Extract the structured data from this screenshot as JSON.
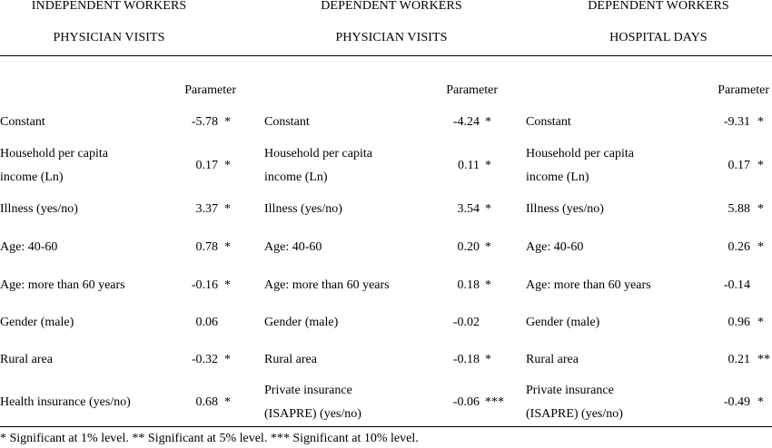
{
  "columns": [
    {
      "title1": "INDEPENDENT WORKERS",
      "title2": "PHYSICIAN VISITS",
      "param_header": "Parameter"
    },
    {
      "title1": "DEPENDENT WORKERS",
      "title2": "PHYSICIAN VISITS",
      "param_header": "Parameter"
    },
    {
      "title1": "DEPENDENT WORKERS",
      "title2": "HOSPITAL DAYS",
      "param_header": "Parameter"
    }
  ],
  "rows": [
    {
      "labels": [
        [
          "Constant"
        ],
        [
          "Constant"
        ],
        [
          "Constant"
        ]
      ],
      "values": [
        "-5.78",
        "-4.24",
        "-9.31"
      ],
      "sig": [
        "*",
        "*",
        "*"
      ]
    },
    {
      "labels": [
        [
          "Household per capita",
          "income (Ln)"
        ],
        [
          "Household per capita",
          "income (Ln)"
        ],
        [
          "Household per capita",
          "income (Ln)"
        ]
      ],
      "values": [
        "0.17",
        "0.11",
        "0.17"
      ],
      "sig": [
        "*",
        "*",
        "*"
      ]
    },
    {
      "labels": [
        [
          "Illness (yes/no)"
        ],
        [
          "Illness (yes/no)"
        ],
        [
          "Illness (yes/no)"
        ]
      ],
      "values": [
        "3.37",
        "3.54",
        "5.88"
      ],
      "sig": [
        "*",
        "*",
        "*"
      ]
    },
    {
      "labels": [
        [
          "Age: 40-60"
        ],
        [
          "Age: 40-60"
        ],
        [
          "Age: 40-60"
        ]
      ],
      "values": [
        "0.78",
        "0.20",
        "0.26"
      ],
      "sig": [
        "*",
        "*",
        "*"
      ]
    },
    {
      "labels": [
        [
          "Age: more than 60 years"
        ],
        [
          "Age: more than 60 years"
        ],
        [
          "Age: more than 60 years"
        ]
      ],
      "values": [
        "-0.16",
        "0.18",
        "-0.14"
      ],
      "sig": [
        "*",
        "*",
        ""
      ]
    },
    {
      "labels": [
        [
          "Gender (male)"
        ],
        [
          "Gender (male)"
        ],
        [
          "Gender (male)"
        ]
      ],
      "values": [
        "0.06",
        "-0.02",
        "0.96"
      ],
      "sig": [
        "",
        "",
        "*"
      ]
    },
    {
      "labels": [
        [
          "Rural area"
        ],
        [
          "Rural area"
        ],
        [
          "Rural area"
        ]
      ],
      "values": [
        "-0.32",
        "-0.18",
        "0.21"
      ],
      "sig": [
        "*",
        "*",
        "**"
      ]
    },
    {
      "labels": [
        [
          "Health insurance (yes/no)"
        ],
        [
          "Private insurance",
          "(ISAPRE) (yes/no)"
        ],
        [
          "Private insurance",
          "(ISAPRE) (yes/no)"
        ]
      ],
      "values": [
        "0.68",
        "-0.06",
        "-0.49"
      ],
      "sig": [
        "*",
        "***",
        "*"
      ]
    }
  ],
  "footnote": "* Significant at 1% level.  ** Significant at 5% level. *** Significant at 10% level."
}
